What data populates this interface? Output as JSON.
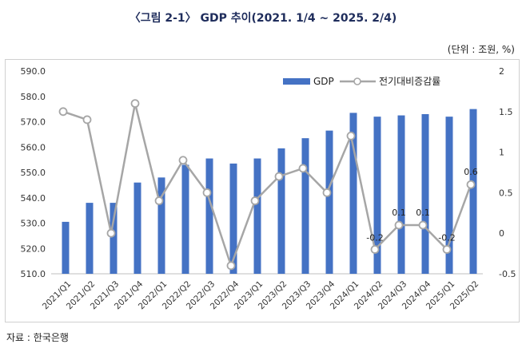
{
  "title": "〈그림 2-1〉 GDP 추이(2021. 1/4 ~ 2025. 2/4)",
  "unit": "(단위 : 조원, %)",
  "source": "자료 : 한국은행",
  "colors": {
    "bar": "#4472c4",
    "line": "#a6a6a6",
    "marker_fill": "#ffffff",
    "grid": "#d9d9d9"
  },
  "chart_data": {
    "type": "bar",
    "categories": [
      "2021/Q1",
      "2021/Q2",
      "2021/Q3",
      "2021/Q4",
      "2022/Q1",
      "2022/Q2",
      "2022/Q3",
      "2022/Q4",
      "2023/Q1",
      "2023/Q2",
      "2023/Q3",
      "2023/Q4",
      "2024/Q1",
      "2024/Q2",
      "2024/Q3",
      "2024/Q4",
      "2025/Q1",
      "2025/Q2"
    ],
    "series": [
      {
        "name": "GDP",
        "type": "bar",
        "axis": "left",
        "values": [
          530.5,
          538.0,
          538.0,
          546.0,
          548.0,
          553.0,
          555.5,
          553.5,
          555.5,
          559.5,
          563.5,
          566.5,
          573.5,
          572.0,
          572.5,
          573.0,
          572.0,
          575.0
        ]
      },
      {
        "name": "전기대비증감률",
        "type": "line",
        "axis": "right",
        "values": [
          1.5,
          1.4,
          0.0,
          1.6,
          0.4,
          0.9,
          0.5,
          -0.4,
          0.4,
          0.7,
          0.8,
          0.5,
          1.2,
          -0.2,
          0.1,
          0.1,
          -0.2,
          0.6
        ]
      }
    ],
    "data_labels": [
      {
        "index": 13,
        "text": "-0.2"
      },
      {
        "index": 14,
        "text": "0.1"
      },
      {
        "index": 15,
        "text": "0.1"
      },
      {
        "index": 16,
        "text": "-0.2"
      },
      {
        "index": 17,
        "text": "0.6"
      }
    ],
    "y_left": {
      "min": 510,
      "max": 590,
      "step": 10,
      "ticks": [
        "510.0",
        "520.0",
        "530.0",
        "540.0",
        "550.0",
        "560.0",
        "570.0",
        "580.0",
        "590.0"
      ]
    },
    "y_right": {
      "min": -0.5,
      "max": 2,
      "step": 0.5,
      "ticks": [
        "-0.5",
        "0",
        "0.5",
        "1",
        "1.5",
        "2"
      ]
    },
    "grid": false,
    "legend_position": "top-right"
  }
}
